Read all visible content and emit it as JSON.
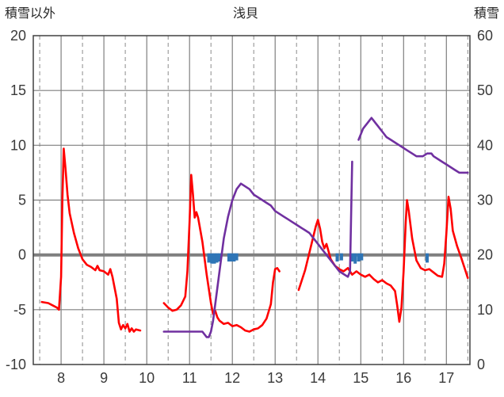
{
  "chart_data": {
    "type": "line",
    "title": "浅貝",
    "left_axis": {
      "label": "積雪以外",
      "min": -10,
      "max": 20,
      "ticks": [
        20,
        15,
        10,
        5,
        0,
        -5,
        -10
      ]
    },
    "right_axis": {
      "label": "積雪",
      "min": 0,
      "max": 60,
      "ticks": [
        60,
        50,
        40,
        30,
        20,
        10,
        0
      ]
    },
    "x_axis": {
      "min": 7.35,
      "max": 17.55,
      "ticks": [
        8,
        9,
        10,
        11,
        12,
        13,
        14,
        15,
        16,
        17
      ],
      "gridlines_dashed": [
        7.5,
        8.5,
        9.5,
        10.5,
        11.5,
        12.5,
        13.5,
        14.5,
        15.5,
        16.5,
        17.5
      ]
    },
    "zero_line": true,
    "legend": "none",
    "colors": {
      "red": "#ff0000",
      "purple": "#7030a0",
      "blue": "#2e75b6",
      "grid": "#7f7f7f"
    },
    "series": [
      {
        "name": "blue-bars",
        "type": "bar",
        "axis": "left",
        "color": "#2e75b6",
        "baseline": 0,
        "points": [
          [
            11.45,
            -0.7
          ],
          [
            11.52,
            -0.8
          ],
          [
            11.58,
            -0.8
          ],
          [
            11.64,
            -0.7
          ],
          [
            11.7,
            -0.6
          ],
          [
            11.92,
            -0.6
          ],
          [
            11.98,
            -0.6
          ],
          [
            12.04,
            -0.6
          ],
          [
            12.1,
            -0.5
          ],
          [
            14.45,
            -0.6
          ],
          [
            14.55,
            -0.5
          ],
          [
            14.8,
            -0.6
          ],
          [
            14.87,
            -0.8
          ],
          [
            14.95,
            -0.6
          ],
          [
            15.02,
            -0.5
          ],
          [
            16.55,
            -0.7
          ]
        ]
      },
      {
        "name": "red-line",
        "type": "line",
        "axis": "left",
        "color": "#ff0000",
        "segments": [
          [
            [
              7.55,
              -4.3
            ],
            [
              7.7,
              -4.4
            ],
            [
              7.8,
              -4.6
            ],
            [
              7.9,
              -4.8
            ],
            [
              7.95,
              -5.0
            ],
            [
              8.0,
              -2.0
            ],
            [
              8.03,
              5.0
            ],
            [
              8.06,
              9.7
            ],
            [
              8.1,
              8.0
            ],
            [
              8.15,
              5.5
            ],
            [
              8.2,
              3.8
            ],
            [
              8.3,
              2.0
            ],
            [
              8.4,
              0.6
            ],
            [
              8.5,
              -0.4
            ],
            [
              8.6,
              -0.9
            ],
            [
              8.7,
              -1.1
            ],
            [
              8.8,
              -1.4
            ],
            [
              8.85,
              -1.0
            ],
            [
              8.9,
              -1.4
            ],
            [
              9.0,
              -1.5
            ],
            [
              9.1,
              -1.8
            ],
            [
              9.15,
              -1.3
            ],
            [
              9.2,
              -2.0
            ],
            [
              9.3,
              -4.0
            ],
            [
              9.35,
              -6.2
            ],
            [
              9.4,
              -6.8
            ],
            [
              9.45,
              -6.4
            ],
            [
              9.5,
              -6.7
            ],
            [
              9.55,
              -6.3
            ],
            [
              9.6,
              -7.0
            ],
            [
              9.65,
              -6.7
            ],
            [
              9.7,
              -7.0
            ],
            [
              9.75,
              -6.8
            ],
            [
              9.85,
              -6.9
            ]
          ],
          [
            [
              10.4,
              -4.4
            ],
            [
              10.5,
              -4.8
            ],
            [
              10.6,
              -5.1
            ],
            [
              10.7,
              -5.0
            ],
            [
              10.8,
              -4.6
            ],
            [
              10.9,
              -3.8
            ],
            [
              10.95,
              -1.5
            ],
            [
              11.0,
              3.0
            ],
            [
              11.04,
              7.3
            ],
            [
              11.08,
              5.5
            ],
            [
              11.12,
              3.4
            ],
            [
              11.16,
              3.9
            ],
            [
              11.2,
              3.4
            ],
            [
              11.3,
              1.2
            ],
            [
              11.4,
              -1.8
            ],
            [
              11.5,
              -4.4
            ],
            [
              11.55,
              -5.4
            ],
            [
              11.6,
              -5.1
            ],
            [
              11.65,
              -5.7
            ],
            [
              11.7,
              -6.0
            ],
            [
              11.8,
              -6.3
            ],
            [
              11.9,
              -6.2
            ],
            [
              12.0,
              -6.5
            ],
            [
              12.1,
              -6.4
            ],
            [
              12.2,
              -6.6
            ],
            [
              12.3,
              -6.9
            ],
            [
              12.4,
              -7.0
            ],
            [
              12.5,
              -6.8
            ],
            [
              12.6,
              -6.7
            ],
            [
              12.7,
              -6.4
            ],
            [
              12.8,
              -5.8
            ],
            [
              12.9,
              -4.5
            ],
            [
              12.95,
              -2.5
            ],
            [
              13.0,
              -1.3
            ],
            [
              13.05,
              -1.2
            ],
            [
              13.1,
              -1.5
            ]
          ],
          [
            [
              13.55,
              -3.2
            ],
            [
              13.6,
              -2.6
            ],
            [
              13.7,
              -1.4
            ],
            [
              13.8,
              0.2
            ],
            [
              13.9,
              1.8
            ],
            [
              13.95,
              2.6
            ],
            [
              14.0,
              3.2
            ],
            [
              14.05,
              2.4
            ],
            [
              14.1,
              1.2
            ],
            [
              14.15,
              0.6
            ],
            [
              14.2,
              1.0
            ],
            [
              14.25,
              0.3
            ],
            [
              14.3,
              -0.4
            ],
            [
              14.4,
              -1.0
            ],
            [
              14.5,
              -1.3
            ],
            [
              14.6,
              -1.5
            ],
            [
              14.7,
              -1.2
            ],
            [
              14.8,
              -1.8
            ],
            [
              14.9,
              -1.5
            ],
            [
              15.0,
              -1.8
            ],
            [
              15.1,
              -2.0
            ],
            [
              15.2,
              -1.8
            ],
            [
              15.3,
              -2.2
            ],
            [
              15.4,
              -2.5
            ],
            [
              15.5,
              -2.3
            ],
            [
              15.6,
              -2.6
            ],
            [
              15.7,
              -2.8
            ],
            [
              15.8,
              -3.3
            ],
            [
              15.85,
              -4.6
            ],
            [
              15.9,
              -6.1
            ],
            [
              15.95,
              -4.8
            ],
            [
              16.0,
              -1.5
            ],
            [
              16.05,
              3.0
            ],
            [
              16.08,
              5.0
            ],
            [
              16.12,
              4.0
            ],
            [
              16.2,
              1.5
            ],
            [
              16.3,
              -0.5
            ],
            [
              16.4,
              -1.2
            ],
            [
              16.5,
              -1.4
            ],
            [
              16.6,
              -1.3
            ],
            [
              16.7,
              -1.6
            ],
            [
              16.8,
              -1.9
            ],
            [
              16.9,
              -2.0
            ],
            [
              16.95,
              -0.8
            ],
            [
              17.0,
              2.0
            ],
            [
              17.05,
              5.3
            ],
            [
              17.1,
              4.2
            ],
            [
              17.15,
              2.2
            ],
            [
              17.25,
              0.8
            ],
            [
              17.35,
              -0.3
            ],
            [
              17.45,
              -1.5
            ],
            [
              17.5,
              -2.1
            ]
          ]
        ]
      },
      {
        "name": "purple-line",
        "type": "line",
        "axis": "right",
        "color": "#7030a0",
        "segments": [
          [
            [
              10.4,
              6
            ],
            [
              10.7,
              6
            ],
            [
              11.0,
              6
            ],
            [
              11.3,
              6
            ],
            [
              11.35,
              5.5
            ],
            [
              11.4,
              5
            ],
            [
              11.45,
              5
            ],
            [
              11.5,
              6
            ],
            [
              11.55,
              8
            ],
            [
              11.6,
              11
            ],
            [
              11.65,
              14
            ],
            [
              11.7,
              17
            ],
            [
              11.75,
              20
            ],
            [
              11.8,
              23
            ],
            [
              11.85,
              25
            ],
            [
              11.9,
              27
            ],
            [
              11.95,
              28.5
            ],
            [
              12.0,
              30
            ],
            [
              12.05,
              31
            ],
            [
              12.1,
              32
            ],
            [
              12.2,
              33
            ],
            [
              12.3,
              32.5
            ],
            [
              12.4,
              32
            ],
            [
              12.5,
              31
            ],
            [
              12.6,
              30.5
            ],
            [
              12.7,
              30
            ],
            [
              12.8,
              29.5
            ],
            [
              12.9,
              29
            ],
            [
              13.0,
              28
            ],
            [
              13.1,
              27.5
            ],
            [
              13.2,
              27
            ],
            [
              13.3,
              26.5
            ],
            [
              13.4,
              26
            ],
            [
              13.5,
              25.5
            ],
            [
              13.6,
              25
            ],
            [
              13.7,
              24.5
            ],
            [
              13.8,
              24
            ],
            [
              13.9,
              23
            ],
            [
              14.0,
              22
            ],
            [
              14.1,
              21
            ],
            [
              14.2,
              20
            ],
            [
              14.3,
              19
            ],
            [
              14.4,
              18
            ],
            [
              14.5,
              17
            ],
            [
              14.6,
              16.5
            ],
            [
              14.7,
              16
            ],
            [
              14.75,
              17
            ],
            [
              14.8,
              37
            ]
          ],
          [
            [
              14.95,
              41
            ],
            [
              15.0,
              42
            ],
            [
              15.05,
              43
            ],
            [
              15.1,
              43.5
            ],
            [
              15.15,
              44
            ],
            [
              15.2,
              44.5
            ],
            [
              15.25,
              45
            ],
            [
              15.3,
              44.5
            ],
            [
              15.35,
              44
            ],
            [
              15.4,
              43.5
            ],
            [
              15.45,
              43
            ],
            [
              15.5,
              42.5
            ],
            [
              15.55,
              42
            ],
            [
              15.6,
              41.5
            ],
            [
              15.7,
              41
            ],
            [
              15.8,
              40.5
            ],
            [
              15.9,
              40
            ],
            [
              16.0,
              39.5
            ],
            [
              16.1,
              39
            ],
            [
              16.2,
              38.5
            ],
            [
              16.3,
              38
            ],
            [
              16.45,
              38
            ],
            [
              16.55,
              38.5
            ],
            [
              16.65,
              38.5
            ],
            [
              16.7,
              38
            ],
            [
              16.8,
              37.5
            ],
            [
              16.9,
              37
            ],
            [
              17.0,
              36.5
            ],
            [
              17.1,
              36
            ],
            [
              17.2,
              35.5
            ],
            [
              17.3,
              35
            ],
            [
              17.5,
              35
            ]
          ]
        ]
      }
    ]
  }
}
